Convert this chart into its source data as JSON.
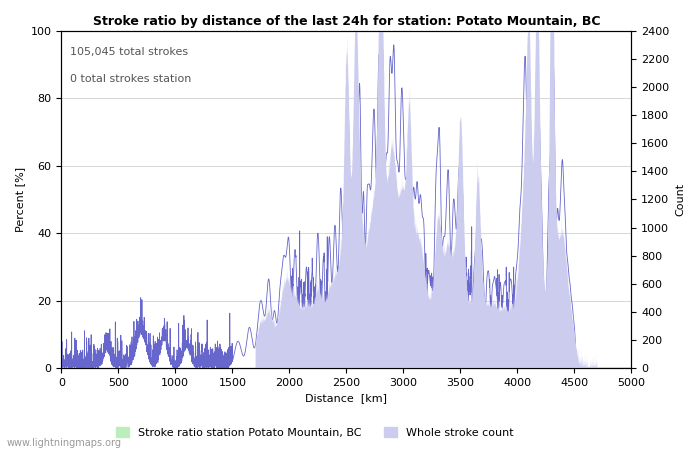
{
  "title": "Stroke ratio by distance of the last 24h for station: Potato Mountain, BC",
  "annotation_line1": "105,045 total strokes",
  "annotation_line2": "0 total strokes station",
  "xlabel": "Distance  [km]",
  "ylabel_left": "Percent [%]",
  "ylabel_right": "Count",
  "xlim": [
    0,
    5000
  ],
  "ylim_left": [
    0,
    100
  ],
  "ylim_right": [
    0,
    2400
  ],
  "xticks": [
    0,
    500,
    1000,
    1500,
    2000,
    2500,
    3000,
    3500,
    4000,
    4500,
    5000
  ],
  "yticks_left": [
    0,
    20,
    40,
    60,
    80,
    100
  ],
  "yticks_right": [
    0,
    200,
    400,
    600,
    800,
    1000,
    1200,
    1400,
    1600,
    1800,
    2000,
    2200,
    2400
  ],
  "legend_label_green": "Stroke ratio station Potato Mountain, BC",
  "legend_label_blue": "Whole stroke count",
  "fill_color_green": "#bbeebb",
  "fill_color_blue": "#ccccee",
  "line_color_blue": "#6666cc",
  "watermark": "www.lightningmaps.org",
  "background_color": "#ffffff",
  "grid_color": "#c8c8c8"
}
